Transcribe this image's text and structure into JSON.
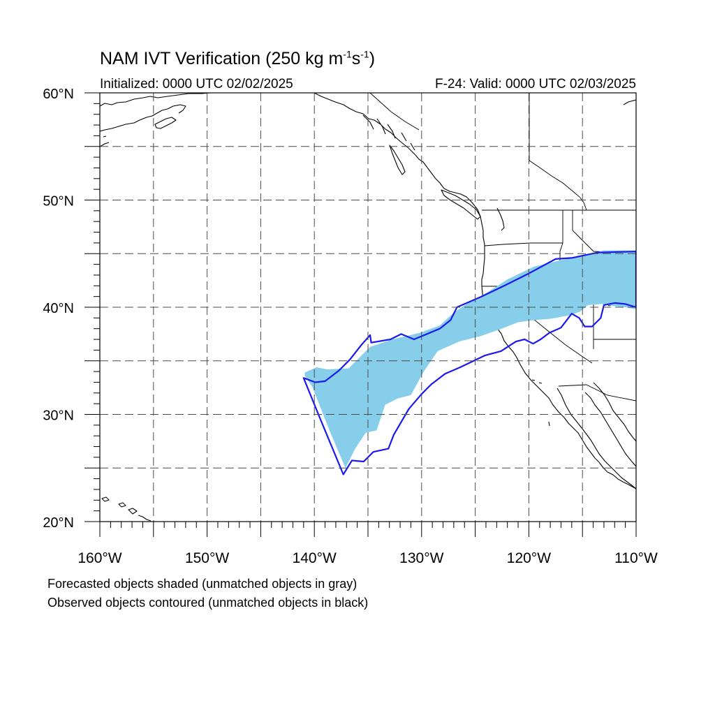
{
  "title": {
    "main": "NAM IVT Verification (250 kg m",
    "exp1": "-1",
    "mid": "s",
    "exp2": "-1",
    "end": ")"
  },
  "init_text": "Initialized: 0000 UTC 02/02/2025",
  "valid_text": "F-24: Valid: 0000 UTC 02/03/2025",
  "lat_labels": [
    "60°N",
    "50°N",
    "40°N",
    "30°N",
    "20°N"
  ],
  "lon_labels": [
    "160°W",
    "150°W",
    "140°W",
    "130°W",
    "120°W",
    "110°W"
  ],
  "footnote1": "Forecasted objects shaded (unmatched objects in gray)",
  "footnote2": "Observed objects contoured (unmatched objects in black)",
  "map_extent": {
    "lon_min": -160,
    "lon_max": -110,
    "lat_min": 20,
    "lat_max": 60
  },
  "colors": {
    "forecast_fill": "#87ceeb",
    "observed_contour": "#1a1aee",
    "coastline": "#000000",
    "grid": "#555555"
  },
  "forecast_object": {
    "matched": true,
    "polygon": [
      [
        -140.9,
        33.9
      ],
      [
        -139.8,
        34.4
      ],
      [
        -138.8,
        34.2
      ],
      [
        -136.8,
        34.3
      ],
      [
        -134.8,
        36.3
      ],
      [
        -132.7,
        37.0
      ],
      [
        -130.2,
        37.6
      ],
      [
        -128.3,
        38.3
      ],
      [
        -127.0,
        39.5
      ],
      [
        -125.8,
        40.3
      ],
      [
        -124.0,
        41.3
      ],
      [
        -122.0,
        42.6
      ],
      [
        -119.5,
        43.8
      ],
      [
        -117.0,
        44.4
      ],
      [
        -115.0,
        44.8
      ],
      [
        -113.0,
        45.3
      ],
      [
        -110.0,
        45.3
      ],
      [
        -110.0,
        39.8
      ],
      [
        -111.0,
        40.0
      ],
      [
        -112.0,
        40.1
      ],
      [
        -113.2,
        40.3
      ],
      [
        -114.5,
        40.2
      ],
      [
        -115.2,
        39.6
      ],
      [
        -116.0,
        39.3
      ],
      [
        -117.5,
        39.0
      ],
      [
        -118.2,
        38.9
      ],
      [
        -119.5,
        38.8
      ],
      [
        -121.0,
        38.6
      ],
      [
        -122.8,
        37.9
      ],
      [
        -124.5,
        37.3
      ],
      [
        -126.5,
        36.8
      ],
      [
        -128.5,
        35.9
      ],
      [
        -129.8,
        34.0
      ],
      [
        -131.0,
        31.8
      ],
      [
        -132.2,
        31.5
      ],
      [
        -133.4,
        30.9
      ],
      [
        -134.2,
        28.5
      ],
      [
        -135.2,
        28.3
      ],
      [
        -136.2,
        26.8
      ],
      [
        -137.1,
        25.0
      ],
      [
        -138.5,
        28.3
      ],
      [
        -140.2,
        32.6
      ],
      [
        -140.9,
        33.6
      ]
    ]
  },
  "observed_object": {
    "matched": true,
    "polygon": [
      [
        -141.0,
        33.4
      ],
      [
        -139.9,
        33.0
      ],
      [
        -139.0,
        33.1
      ],
      [
        -137.7,
        34.1
      ],
      [
        -136.7,
        35.1
      ],
      [
        -135.6,
        36.5
      ],
      [
        -134.8,
        37.4
      ],
      [
        -134.7,
        36.7
      ],
      [
        -132.9,
        37.0
      ],
      [
        -131.9,
        37.5
      ],
      [
        -130.7,
        37.0
      ],
      [
        -128.3,
        38.0
      ],
      [
        -127.3,
        38.8
      ],
      [
        -126.7,
        40.0
      ],
      [
        -124.4,
        41.0
      ],
      [
        -122.3,
        42.0
      ],
      [
        -120.1,
        43.1
      ],
      [
        -117.5,
        44.5
      ],
      [
        -116.0,
        44.6
      ],
      [
        -113.6,
        45.1
      ],
      [
        -110.0,
        45.2
      ],
      [
        -110.0,
        40.0
      ],
      [
        -111.0,
        40.3
      ],
      [
        -112.0,
        40.4
      ],
      [
        -113.0,
        40.2
      ],
      [
        -113.3,
        39.0
      ],
      [
        -114.1,
        38.2
      ],
      [
        -114.8,
        38.2
      ],
      [
        -115.3,
        39.0
      ],
      [
        -116.0,
        39.4
      ],
      [
        -117.0,
        38.1
      ],
      [
        -118.1,
        37.6
      ],
      [
        -118.9,
        37.0
      ],
      [
        -119.6,
        36.6
      ],
      [
        -120.4,
        37.0
      ],
      [
        -121.2,
        36.8
      ],
      [
        -122.6,
        35.9
      ],
      [
        -124.1,
        35.5
      ],
      [
        -126.4,
        34.4
      ],
      [
        -127.8,
        33.8
      ],
      [
        -129.1,
        32.8
      ],
      [
        -130.0,
        31.9
      ],
      [
        -131.2,
        30.5
      ],
      [
        -132.6,
        28.1
      ],
      [
        -133.1,
        26.8
      ],
      [
        -134.5,
        26.5
      ],
      [
        -135.4,
        25.6
      ],
      [
        -136.5,
        25.7
      ],
      [
        -137.3,
        24.4
      ],
      [
        -139.5,
        29.7
      ],
      [
        -141.0,
        33.4
      ]
    ]
  }
}
